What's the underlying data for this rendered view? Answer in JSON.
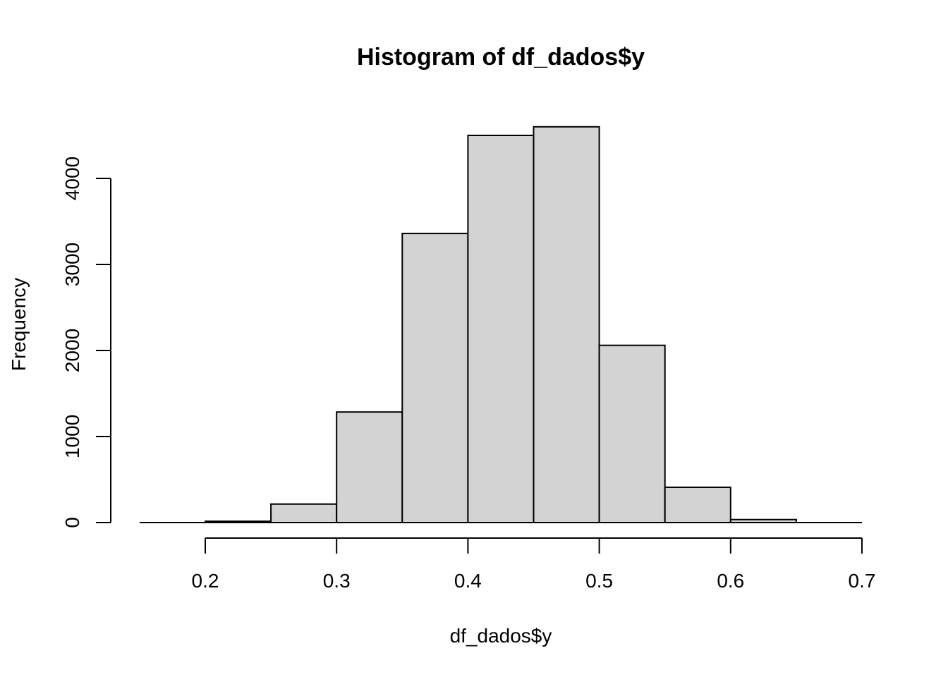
{
  "chart_data": {
    "type": "bar",
    "title": "Histogram of df_dados$y",
    "xlabel": "df_dados$y",
    "ylabel": "Frequency",
    "bins": [
      {
        "x0": 0.15,
        "x1": 0.2,
        "count": 0
      },
      {
        "x0": 0.2,
        "x1": 0.25,
        "count": 15
      },
      {
        "x0": 0.25,
        "x1": 0.3,
        "count": 215
      },
      {
        "x0": 0.3,
        "x1": 0.35,
        "count": 1285
      },
      {
        "x0": 0.35,
        "x1": 0.4,
        "count": 3360
      },
      {
        "x0": 0.4,
        "x1": 0.45,
        "count": 4500
      },
      {
        "x0": 0.45,
        "x1": 0.5,
        "count": 4600
      },
      {
        "x0": 0.5,
        "x1": 0.55,
        "count": 2060
      },
      {
        "x0": 0.55,
        "x1": 0.6,
        "count": 410
      },
      {
        "x0": 0.6,
        "x1": 0.65,
        "count": 35
      },
      {
        "x0": 0.65,
        "x1": 0.7,
        "count": 0
      }
    ],
    "xlim": [
      0.15,
      0.7
    ],
    "ylim": [
      0,
      4600
    ],
    "x_ticks": [
      0.2,
      0.3,
      0.4,
      0.5,
      0.6,
      0.7
    ],
    "x_tick_labels": [
      "0.2",
      "0.3",
      "0.4",
      "0.5",
      "0.6",
      "0.7"
    ],
    "y_ticks": [
      0,
      1000,
      2000,
      3000,
      4000
    ],
    "y_tick_labels": [
      "0",
      "1000",
      "2000",
      "3000",
      "4000"
    ],
    "grid": false,
    "colors": {
      "bar_fill": "#d3d3d3",
      "bar_stroke": "#000000",
      "axis": "#000000"
    }
  }
}
